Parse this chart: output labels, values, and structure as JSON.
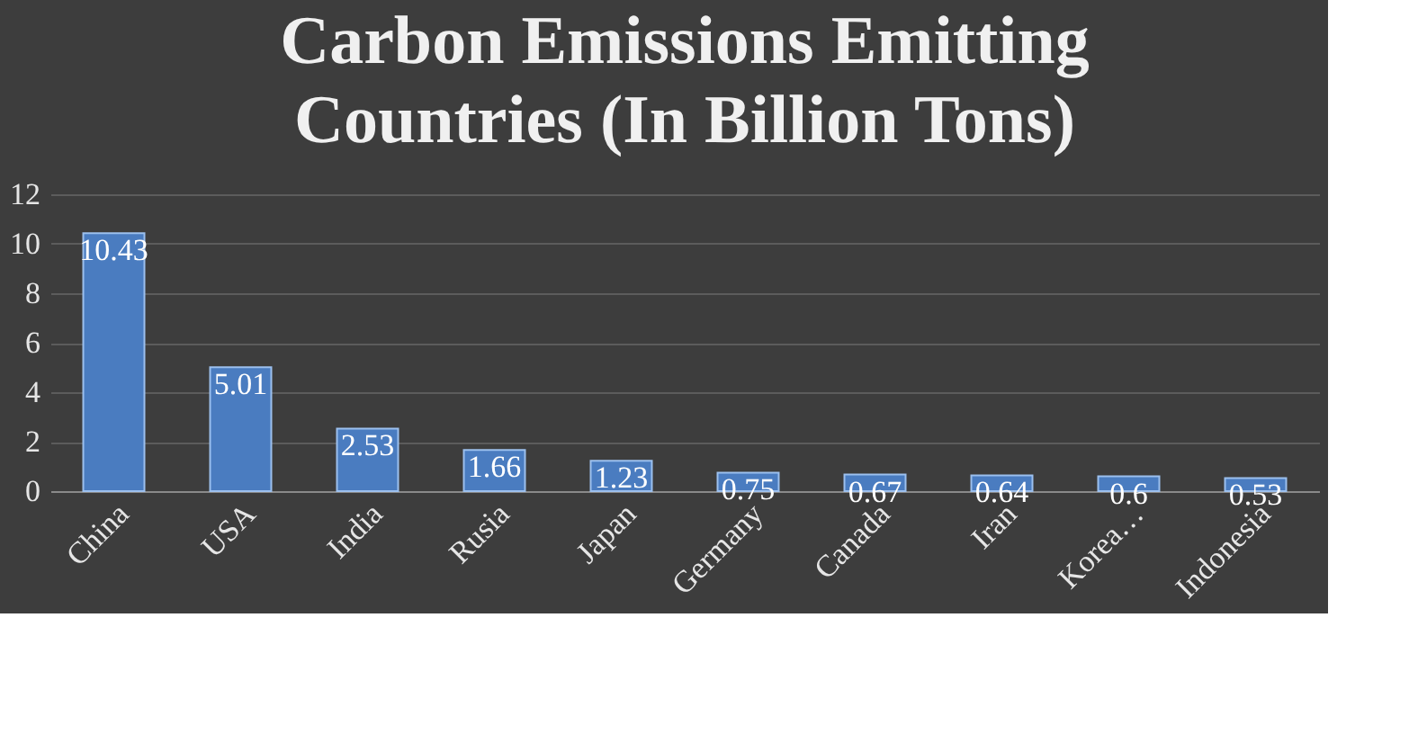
{
  "chart_data": {
    "type": "bar",
    "title": "Carbon Emissions Emitting Countries (In Billion Tons)",
    "categories": [
      "China",
      "USA",
      "India",
      "Rusia",
      "Japan",
      "Germany",
      "Canada",
      "Iran",
      "Korea…",
      "Indonesia"
    ],
    "values": [
      10.43,
      5.01,
      2.53,
      1.66,
      1.23,
      0.75,
      0.67,
      0.64,
      0.6,
      0.53
    ],
    "color": "#4a7cc0",
    "ylim": [
      0,
      12
    ],
    "yticks": [
      0,
      2,
      4,
      6,
      8,
      10,
      12
    ],
    "grid": "y",
    "data_labels": true
  }
}
